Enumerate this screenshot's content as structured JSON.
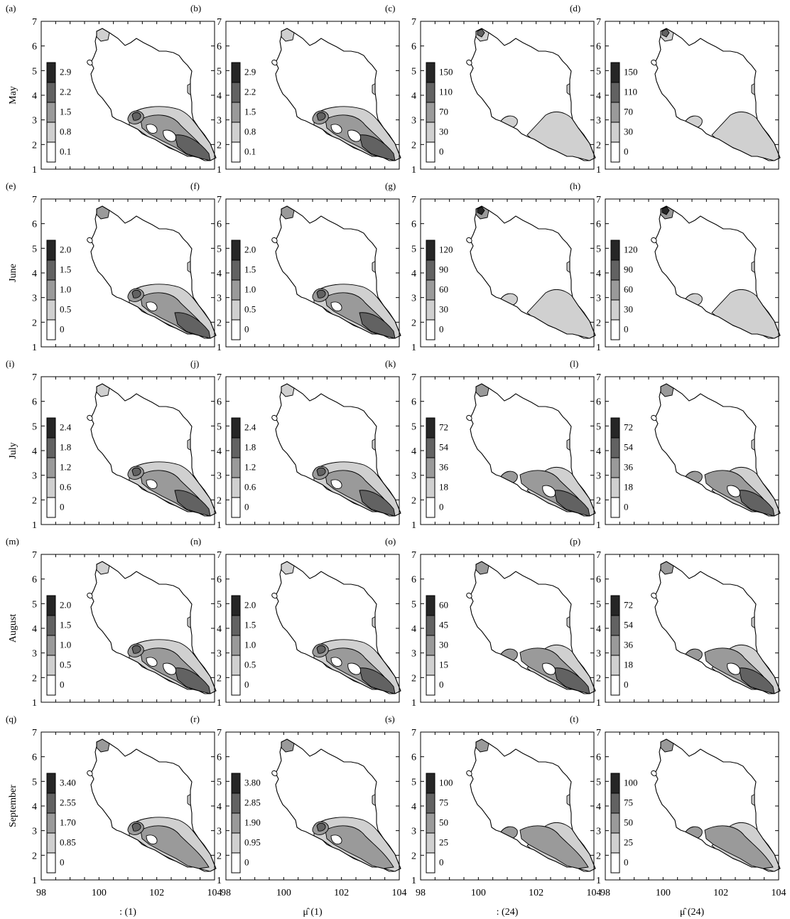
{
  "figure": {
    "panels": [
      {
        "label": "(a)",
        "legend": [
          "2.9",
          "2.2",
          "1.5",
          "0.8",
          "0.1"
        ]
      },
      {
        "label": "(b)",
        "legend": [
          "2.9",
          "2.2",
          "1.5",
          "0.8",
          "0.1"
        ]
      },
      {
        "label": "(c)",
        "legend": [
          "150",
          "110",
          "70",
          "30",
          "0"
        ]
      },
      {
        "label": "(d)",
        "legend": [
          "150",
          "110",
          "70",
          "30",
          "0"
        ]
      },
      {
        "label": "(e)",
        "legend": [
          "2.0",
          "1.5",
          "1.0",
          "0.5",
          "0"
        ]
      },
      {
        "label": "(f)",
        "legend": [
          "2.0",
          "1.5",
          "1.0",
          "0.5",
          "0"
        ]
      },
      {
        "label": "(g)",
        "legend": [
          "120",
          "90",
          "60",
          "30",
          "0"
        ]
      },
      {
        "label": "(h)",
        "legend": [
          "120",
          "90",
          "60",
          "30",
          "0"
        ]
      },
      {
        "label": "(i)",
        "legend": [
          "2.4",
          "1.8",
          "1.2",
          "0.6",
          "0"
        ]
      },
      {
        "label": "(j)",
        "legend": [
          "2.4",
          "1.8",
          "1.2",
          "0.6",
          "0"
        ]
      },
      {
        "label": "(k)",
        "legend": [
          "72",
          "54",
          "36",
          "18",
          "0"
        ]
      },
      {
        "label": "(l)",
        "legend": [
          "72",
          "54",
          "36",
          "18",
          "0"
        ]
      },
      {
        "label": "(m)",
        "legend": [
          "2.0",
          "1.5",
          "1.0",
          "0.5",
          "0"
        ]
      },
      {
        "label": "(n)",
        "legend": [
          "2.0",
          "1.5",
          "1.0",
          "0.5",
          "0"
        ]
      },
      {
        "label": "(o)",
        "legend": [
          "60",
          "45",
          "30",
          "15",
          "0"
        ]
      },
      {
        "label": "(p)",
        "legend": [
          "72",
          "54",
          "36",
          "18",
          "0"
        ]
      },
      {
        "label": "(q)",
        "legend": [
          "3.40",
          "2.55",
          "1.70",
          "0.85",
          "0"
        ]
      },
      {
        "label": "(r)",
        "legend": [
          "3.80",
          "2.85",
          "1.90",
          "0.95",
          "0"
        ]
      },
      {
        "label": "(s)",
        "legend": [
          "100",
          "75",
          "50",
          "25",
          "0"
        ]
      },
      {
        "label": "(t)",
        "legend": [
          "100",
          "75",
          "50",
          "25",
          "0"
        ]
      }
    ],
    "row_labels": [
      "May",
      "June",
      "July",
      "August",
      "September"
    ],
    "column_labels": [
      ": (1)",
      "μ̂ (1)",
      ": (24)",
      "μ̂ (24)"
    ],
    "y_ticks": [
      "1",
      "2",
      "3",
      "4",
      "5",
      "6",
      "7"
    ],
    "x_ticks": [
      "98",
      "100",
      "102",
      "104"
    ],
    "shade_colors": [
      "#ffffff",
      "#d0d0d0",
      "#9a9a9a",
      "#626262",
      "#262626"
    ]
  }
}
